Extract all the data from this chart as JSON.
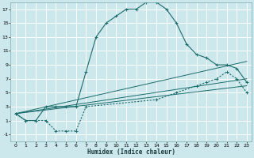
{
  "xlabel": "Humidex (Indice chaleur)",
  "bg_color": "#cce8ec",
  "grid_color": "#ffffff",
  "line_color": "#1a6b6b",
  "xlim": [
    -0.5,
    23.5
  ],
  "ylim": [
    -2,
    18
  ],
  "xticks": [
    0,
    1,
    2,
    3,
    4,
    5,
    6,
    7,
    8,
    9,
    10,
    11,
    12,
    13,
    14,
    15,
    16,
    17,
    18,
    19,
    20,
    21,
    22,
    23
  ],
  "yticks": [
    -1,
    1,
    3,
    5,
    7,
    9,
    11,
    13,
    15,
    17
  ],
  "line1_x": [
    0,
    1,
    2,
    3,
    4,
    5,
    6,
    7,
    8,
    9,
    10,
    11,
    12,
    13,
    14,
    15,
    16,
    17,
    18,
    19,
    20,
    21,
    22,
    23
  ],
  "line1_y": [
    2,
    1,
    1,
    3,
    3,
    3,
    3,
    8,
    13,
    15,
    16,
    17,
    17,
    18,
    18,
    17,
    15,
    12,
    10.5,
    10,
    9,
    9,
    8.5,
    6.5
  ],
  "line2_x": [
    0,
    1,
    2,
    3,
    4,
    5,
    6,
    7,
    14,
    16,
    18,
    19,
    20,
    21,
    22,
    23
  ],
  "line2_y": [
    2,
    1,
    1,
    1,
    -0.5,
    -0.5,
    -0.5,
    3,
    4,
    5,
    6,
    6.5,
    7,
    8,
    7,
    5
  ],
  "line3_x": [
    0,
    23
  ],
  "line3_y": [
    2,
    6
  ],
  "line4_x": [
    0,
    23
  ],
  "line4_y": [
    2,
    7
  ],
  "line5_x": [
    0,
    23
  ],
  "line5_y": [
    2,
    9.5
  ]
}
